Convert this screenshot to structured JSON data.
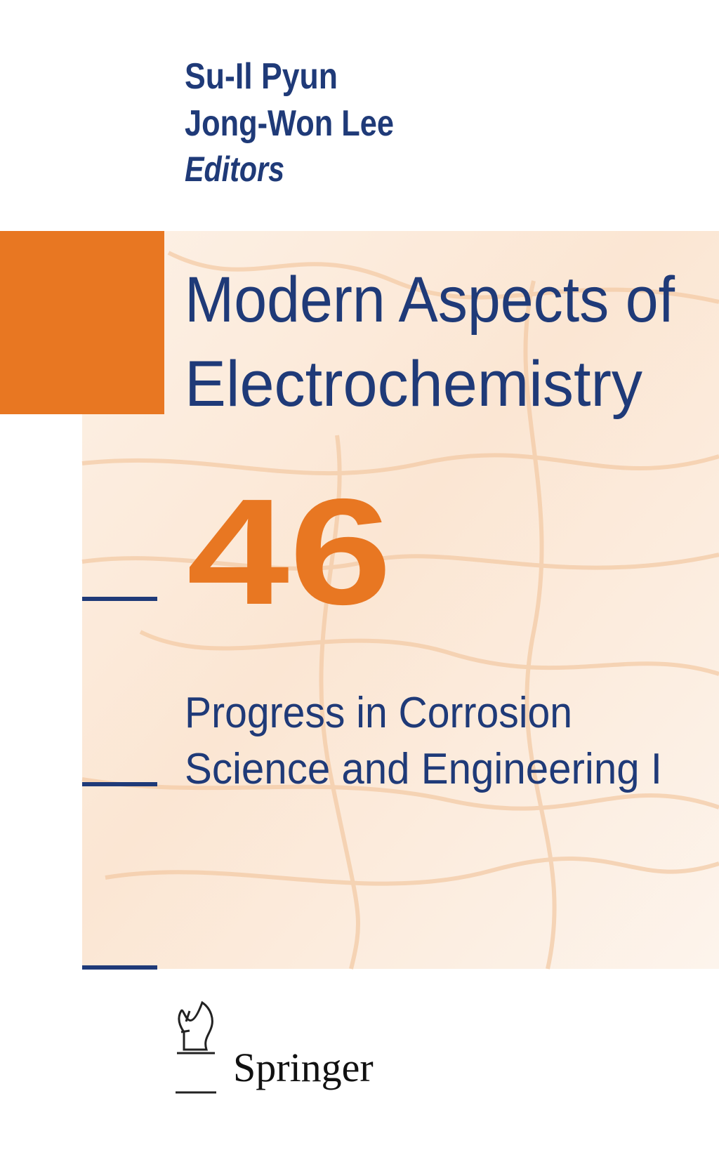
{
  "cover": {
    "editors": [
      "Su-Il Pyun",
      "Jong-Won Lee"
    ],
    "role": "Editors",
    "title": [
      "Modern Aspects of",
      "Electrochemistry"
    ],
    "volume": "46",
    "subtitle": [
      "Progress in Corrosion",
      "Science and Engineering I"
    ],
    "publisher": "Springer"
  }
}
